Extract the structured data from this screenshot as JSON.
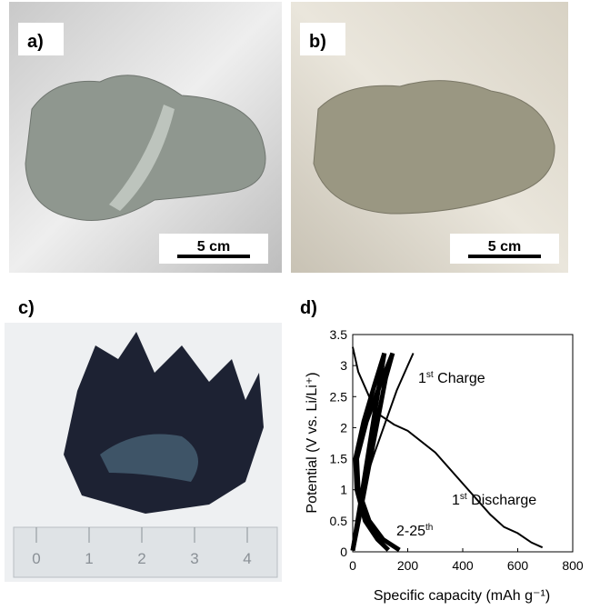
{
  "panels": {
    "a": {
      "label": "a)",
      "scale": "5 cm"
    },
    "b": {
      "label": "b)",
      "scale": "5 cm"
    },
    "c": {
      "label": "c)",
      "ruler": [
        "0",
        "1",
        "2",
        "3",
        "4"
      ]
    },
    "d": {
      "label": "d)"
    }
  },
  "chart_data": {
    "type": "line",
    "x_label": "Specific capacity (mAh g⁻¹)",
    "y_label": "Potential (V vs. Li/Li⁺)",
    "xlim": [
      0,
      800
    ],
    "xticks": [
      0,
      200,
      400,
      600,
      800
    ],
    "ylim": [
      0,
      3.5
    ],
    "yticks": [
      0,
      0.5,
      1,
      1.5,
      2,
      2.5,
      3,
      3.5
    ],
    "annotations": [
      {
        "text": "1",
        "sup": "st",
        "rest": " Charge"
      },
      {
        "text": "1",
        "sup": "st",
        "rest": " Discharge"
      },
      {
        "text": "2-25",
        "sup": "th"
      }
    ],
    "series": [
      {
        "color": "#000000",
        "x": [
          0,
          20,
          60,
          100,
          150,
          200,
          300,
          400,
          500,
          550,
          600,
          650,
          690
        ],
        "values": [
          3.3,
          2.9,
          2.5,
          2.2,
          2.05,
          1.95,
          1.6,
          1.1,
          0.6,
          0.4,
          0.3,
          0.15,
          0.07
        ]
      },
      {
        "color": "#000000",
        "x": [
          0,
          20,
          50,
          80,
          120,
          160,
          200,
          220
        ],
        "values": [
          0.05,
          0.6,
          1.2,
          1.6,
          2.1,
          2.6,
          3.0,
          3.2
        ]
      },
      {
        "color": "#000000",
        "x": [
          0,
          30,
          60,
          90,
          120,
          145
        ],
        "values": [
          0.02,
          0.7,
          1.4,
          2.1,
          2.8,
          3.2
        ]
      },
      {
        "color": "#000000",
        "x": [
          145,
          100,
          50,
          15,
          20,
          60,
          110,
          170
        ],
        "values": [
          3.2,
          2.7,
          2.1,
          1.5,
          1.0,
          0.5,
          0.2,
          0.03
        ]
      },
      {
        "color": "#000000",
        "x": [
          0,
          25,
          50,
          75,
          100,
          115
        ],
        "values": [
          0.02,
          0.7,
          1.4,
          2.1,
          2.8,
          3.2
        ]
      },
      {
        "color": "#000000",
        "x": [
          115,
          80,
          40,
          10,
          15,
          45,
          90,
          130
        ],
        "values": [
          3.2,
          2.7,
          2.1,
          1.5,
          1.0,
          0.5,
          0.2,
          0.03
        ]
      }
    ]
  }
}
